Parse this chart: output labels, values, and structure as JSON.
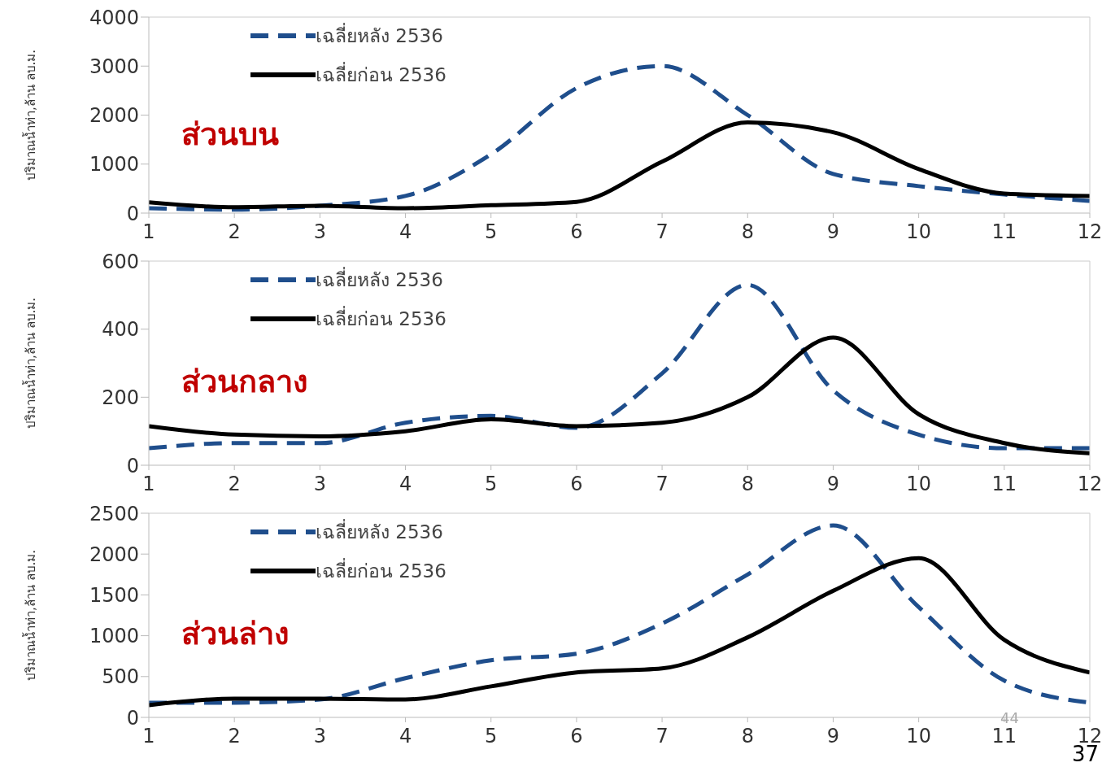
{
  "chart_data": [
    {
      "type": "line",
      "title": "ส่วนบน",
      "ylabel": "ปริมาณน้ำท่า,ล้าน ลบ.ม.",
      "x": [
        1,
        2,
        3,
        4,
        5,
        6,
        7,
        8,
        9,
        10,
        11,
        12
      ],
      "xlim": [
        1,
        12
      ],
      "xticks": [
        1,
        2,
        3,
        4,
        5,
        6,
        7,
        8,
        9,
        10,
        11,
        12
      ],
      "ylim": [
        0,
        4000
      ],
      "yticks": [
        0,
        1000,
        2000,
        3000,
        4000
      ],
      "grid": false,
      "legend": "top left",
      "marker": "none",
      "series": [
        {
          "name": "เฉลี่ยหลัง 2536",
          "color": "#1f4e8c",
          "line_style": "dashed",
          "values": [
            100,
            70,
            150,
            350,
            1200,
            2550,
            3000,
            2000,
            800,
            550,
            380,
            250
          ]
        },
        {
          "name": "เฉลี่ยก่อน 2536",
          "color": "#000000",
          "line_style": "solid",
          "values": [
            220,
            120,
            150,
            100,
            160,
            230,
            1050,
            1850,
            1650,
            900,
            400,
            350
          ]
        }
      ]
    },
    {
      "type": "line",
      "title": "ส่วนกลาง",
      "ylabel": "ปริมาณน้ำท่า,ล้าน ลบ.ม.",
      "x": [
        1,
        2,
        3,
        4,
        5,
        6,
        7,
        8,
        9,
        10,
        11,
        12
      ],
      "xlim": [
        1,
        12
      ],
      "xticks": [
        1,
        2,
        3,
        4,
        5,
        6,
        7,
        8,
        9,
        10,
        11,
        12
      ],
      "ylim": [
        0,
        600
      ],
      "yticks": [
        0,
        200,
        400,
        600
      ],
      "grid": false,
      "legend": "top left",
      "marker": "none",
      "series": [
        {
          "name": "เฉลี่ยหลัง 2536",
          "color": "#1f4e8c",
          "line_style": "dashed",
          "values": [
            50,
            65,
            65,
            125,
            145,
            110,
            270,
            530,
            220,
            90,
            50,
            50
          ]
        },
        {
          "name": "เฉลี่ยก่อน 2536",
          "color": "#000000",
          "line_style": "solid",
          "values": [
            115,
            90,
            85,
            100,
            135,
            115,
            125,
            200,
            375,
            150,
            65,
            35
          ]
        }
      ]
    },
    {
      "type": "line",
      "title": "ส่วนล่าง",
      "ylabel": "ปริมาณน้ำท่า,ล้าน ลบ.ม.",
      "x": [
        1,
        2,
        3,
        4,
        5,
        6,
        7,
        8,
        9,
        10,
        11,
        12
      ],
      "xlim": [
        1,
        12
      ],
      "xticks": [
        1,
        2,
        3,
        4,
        5,
        6,
        7,
        8,
        9,
        10,
        11,
        12
      ],
      "ylim": [
        0,
        2500
      ],
      "yticks": [
        0,
        500,
        1000,
        1500,
        2000,
        2500
      ],
      "grid": false,
      "legend": "top left",
      "marker": "none",
      "annotations": [
        "44",
        "37"
      ],
      "series": [
        {
          "name": "เฉลี่ยหลัง 2536",
          "color": "#1f4e8c",
          "line_style": "dashed",
          "values": [
            180,
            180,
            220,
            480,
            700,
            780,
            1150,
            1750,
            2350,
            1350,
            450,
            180
          ]
        },
        {
          "name": "เฉลี่ยก่อน 2536",
          "color": "#000000",
          "line_style": "solid",
          "values": [
            150,
            230,
            230,
            220,
            380,
            550,
            600,
            980,
            1550,
            1950,
            950,
            550
          ]
        }
      ]
    }
  ]
}
